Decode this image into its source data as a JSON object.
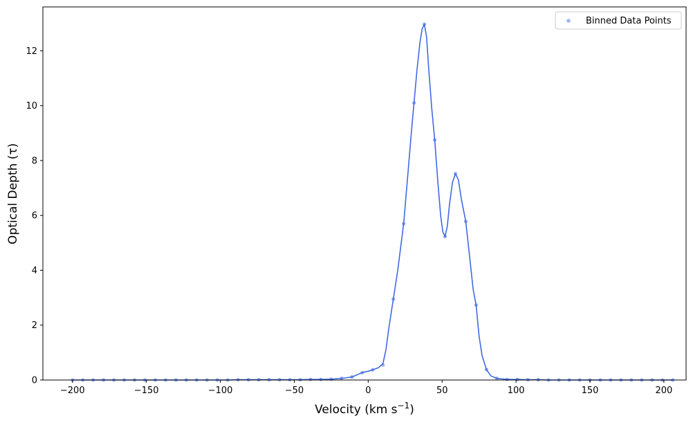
{
  "chart_data": {
    "type": "line",
    "xlabel": "Velocity (km s",
    "xlabel_sup": "−1",
    "xlabel_close": ")",
    "ylabel": "Optical Depth (τ)",
    "xlim": [
      -220,
      215
    ],
    "ylim": [
      0,
      13.6
    ],
    "xticks": [
      -200,
      -150,
      -100,
      -50,
      0,
      50,
      100,
      150,
      200
    ],
    "xtick_labels": [
      "−200",
      "−150",
      "−100",
      "−50",
      "0",
      "50",
      "100",
      "150",
      "200"
    ],
    "yticks": [
      0,
      2,
      4,
      6,
      8,
      10,
      12
    ],
    "ytick_labels": [
      "0",
      "2",
      "4",
      "6",
      "8",
      "10",
      "12"
    ],
    "grid": false,
    "legend": {
      "placement": "top-right",
      "entries": [
        "Binned Data Points"
      ]
    },
    "series": [
      {
        "name": "Binned Data Points",
        "kind": "scatter",
        "color": "#4169e1",
        "x": [
          -200.0,
          -193.0,
          -186.0,
          -179.0,
          -172.0,
          -165.0,
          -158.0,
          -151.0,
          -144.0,
          -137.0,
          -130.0,
          -123.0,
          -116.0,
          -109.0,
          -102.0,
          -95.0,
          -88.0,
          -81.0,
          -74.0,
          -67.0,
          -60.0,
          -53.0,
          -46.0,
          -39.0,
          -32.0,
          -25.0,
          -18.0,
          -11.0,
          -4.0,
          3.0,
          10.0,
          17.0,
          24.0,
          31.0,
          38.0,
          45.0,
          52.0,
          59.0,
          66.0,
          73.0,
          80.0,
          87.0,
          94.0,
          101.0,
          108.0,
          115.0,
          122.0,
          129.0,
          136.0,
          143.0,
          150.0,
          157.0,
          164.0,
          171.0,
          178.0,
          185.0,
          192.0,
          199.0,
          206.0
        ],
        "y": [
          0.0,
          0.0,
          0.0,
          0.0,
          0.0,
          0.0,
          0.0,
          0.0,
          0.0,
          0.0,
          0.0,
          0.0,
          0.0,
          0.0,
          0.0,
          0.0,
          0.01,
          0.01,
          0.01,
          0.01,
          0.01,
          0.01,
          0.01,
          0.02,
          0.02,
          0.03,
          0.06,
          0.11,
          0.27,
          0.37,
          0.55,
          2.95,
          5.7,
          10.1,
          12.97,
          8.75,
          5.23,
          7.52,
          5.78,
          2.73,
          0.38,
          0.06,
          0.02,
          0.02,
          0.01,
          0.01,
          0.0,
          0.0,
          0.0,
          0.0,
          0.0,
          0.0,
          0.0,
          0.0,
          0.0,
          0.0,
          0.0,
          0.0,
          0.0
        ]
      },
      {
        "name": "",
        "kind": "line",
        "color": "#4169e1",
        "x": [
          -200.0,
          -193.0,
          -186.0,
          -179.0,
          -172.0,
          -165.0,
          -158.0,
          -151.0,
          -144.0,
          -137.0,
          -130.0,
          -123.0,
          -116.0,
          -109.0,
          -102.0,
          -95.0,
          -88.0,
          -81.0,
          -74.0,
          -67.0,
          -60.0,
          -53.0,
          -46.0,
          -39.0,
          -32.0,
          -25.0,
          -18.0,
          -11.0,
          -4.0,
          0.0,
          3.0,
          7.0,
          10.0,
          12.0,
          14.0,
          17.0,
          20.0,
          24.0,
          27.0,
          29.0,
          31.0,
          33.0,
          35.0,
          36.5,
          38.0,
          39.5,
          41.0,
          43.0,
          45.0,
          47.0,
          49.0,
          50.5,
          52.0,
          53.5,
          55.0,
          57.0,
          59.0,
          61.0,
          63.0,
          66.0,
          69.0,
          71.0,
          73.0,
          75.0,
          77.0,
          80.0,
          83.0,
          87.0,
          94.0,
          101.0,
          108.0,
          115.0,
          122.0,
          129.0,
          136.0,
          143.0,
          150.0,
          157.0,
          164.0,
          171.0,
          178.0,
          185.0,
          192.0,
          199.0,
          206.0
        ],
        "y": [
          0.0,
          0.0,
          0.0,
          0.0,
          0.0,
          0.0,
          0.0,
          0.0,
          0.0,
          0.0,
          0.0,
          0.0,
          0.0,
          0.0,
          0.0,
          0.0,
          0.01,
          0.01,
          0.01,
          0.01,
          0.01,
          0.01,
          0.01,
          0.02,
          0.02,
          0.03,
          0.06,
          0.11,
          0.27,
          0.32,
          0.37,
          0.45,
          0.6,
          1.1,
          1.9,
          2.95,
          4.0,
          5.7,
          7.6,
          8.9,
          10.1,
          11.3,
          12.3,
          12.8,
          12.97,
          12.5,
          11.3,
          9.9,
          8.75,
          7.3,
          6.0,
          5.4,
          5.23,
          5.6,
          6.4,
          7.2,
          7.52,
          7.3,
          6.6,
          5.78,
          4.3,
          3.3,
          2.73,
          1.6,
          0.9,
          0.38,
          0.15,
          0.06,
          0.02,
          0.02,
          0.01,
          0.01,
          0.0,
          0.0,
          0.0,
          0.0,
          0.0,
          0.0,
          0.0,
          0.0,
          0.0,
          0.0,
          0.0,
          0.0,
          0.0
        ]
      }
    ]
  }
}
